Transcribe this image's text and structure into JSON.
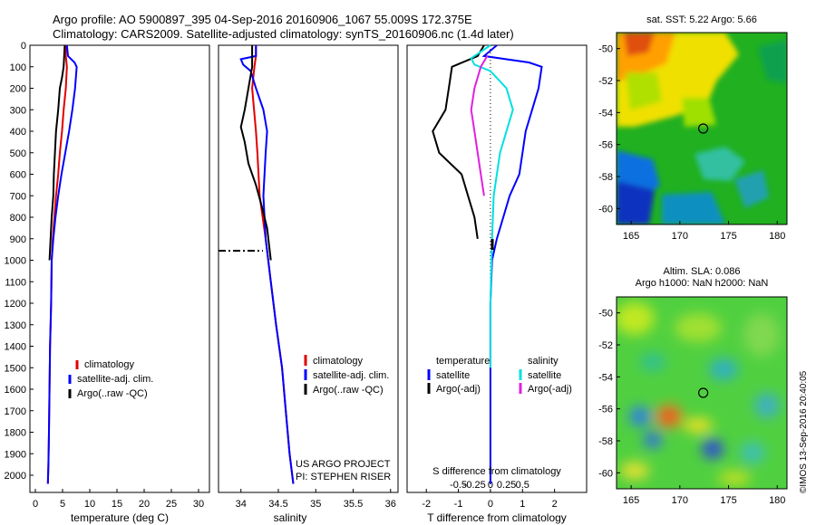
{
  "header": {
    "line1": "Argo profile: AO 5900897_395 04-Sep-2016 20160906_1067 55.009S 172.375E",
    "line2": "Climatology: CARS2009. Satellite-adjusted climatology: synTS_20160906.nc (1.4d later)"
  },
  "colors": {
    "climatology": "#e00000",
    "satellite": "#0000ff",
    "argo": "#000000",
    "sat_salinity": "#00e0e0",
    "argo_adj_salinity": "#e020e0"
  },
  "credits": {
    "project": "US ARGO PROJECT",
    "pi": "PI: STEPHEN RISER",
    "stamp": "©IMOS 13-Sep-2016 20:40:05"
  },
  "chart_data": [
    {
      "id": "temperature",
      "type": "line",
      "xlabel": "temperature (deg C)",
      "xlim": [
        -1,
        32
      ],
      "ylim": [
        2080,
        0
      ],
      "xticks": [
        0,
        5,
        10,
        15,
        20,
        25,
        30
      ],
      "yticks": [
        0,
        100,
        200,
        300,
        400,
        500,
        600,
        700,
        800,
        900,
        1000,
        1100,
        1200,
        1300,
        1400,
        1500,
        1600,
        1700,
        1800,
        1900,
        2000
      ],
      "legend": [
        "climatology",
        "satellite-adj. clim.",
        "Argo(..raw -QC)"
      ],
      "series": [
        {
          "key": "climatology",
          "points": [
            [
              5.6,
              0
            ],
            [
              5.6,
              50
            ],
            [
              5.8,
              100
            ],
            [
              5.6,
              200
            ],
            [
              5.2,
              300
            ],
            [
              4.9,
              400
            ],
            [
              4.5,
              500
            ],
            [
              4.2,
              600
            ],
            [
              3.8,
              700
            ],
            [
              3.5,
              800
            ],
            [
              3.2,
              900
            ],
            [
              3.0,
              1000
            ],
            [
              2.9,
              1200
            ],
            [
              2.7,
              1400
            ],
            [
              2.6,
              1600
            ],
            [
              2.5,
              1800
            ],
            [
              2.4,
              1950
            ],
            [
              2.3,
              2040
            ]
          ]
        },
        {
          "key": "satellite",
          "points": [
            [
              5.8,
              0
            ],
            [
              6.0,
              50
            ],
            [
              7.2,
              80
            ],
            [
              7.6,
              100
            ],
            [
              7.3,
              200
            ],
            [
              6.8,
              300
            ],
            [
              6.2,
              400
            ],
            [
              5.5,
              500
            ],
            [
              4.8,
              600
            ],
            [
              4.2,
              700
            ],
            [
              3.7,
              800
            ],
            [
              3.3,
              900
            ],
            [
              3.0,
              1000
            ],
            [
              2.9,
              1200
            ],
            [
              2.7,
              1400
            ],
            [
              2.6,
              1600
            ],
            [
              2.5,
              1800
            ],
            [
              2.4,
              1950
            ],
            [
              2.3,
              2040
            ]
          ]
        },
        {
          "key": "argo",
          "points": [
            [
              5.4,
              0
            ],
            [
              5.3,
              50
            ],
            [
              5.2,
              100
            ],
            [
              4.9,
              150
            ],
            [
              4.5,
              200
            ],
            [
              4.2,
              300
            ],
            [
              3.8,
              400
            ],
            [
              3.6,
              500
            ],
            [
              3.4,
              600
            ],
            [
              3.3,
              700
            ],
            [
              3.0,
              800
            ],
            [
              2.8,
              900
            ],
            [
              2.6,
              1000
            ]
          ]
        }
      ]
    },
    {
      "id": "salinity",
      "type": "line",
      "xlabel": "salinity",
      "xlim": [
        33.7,
        36.1
      ],
      "ylim": [
        2080,
        0
      ],
      "xticks": [
        34,
        34.5,
        35,
        35.5,
        36
      ],
      "legend": [
        "climatology",
        "satellite-adj. clim.",
        "Argo(..raw -QC)"
      ],
      "series": [
        {
          "key": "climatology",
          "points": [
            [
              34.2,
              0
            ],
            [
              34.2,
              50
            ],
            [
              34.18,
              100
            ],
            [
              34.15,
              200
            ],
            [
              34.2,
              400
            ],
            [
              34.22,
              500
            ],
            [
              34.25,
              700
            ],
            [
              34.33,
              900
            ],
            [
              34.4,
              1100
            ],
            [
              34.47,
              1300
            ],
            [
              34.55,
              1500
            ],
            [
              34.6,
              1700
            ],
            [
              34.65,
              1900
            ],
            [
              34.7,
              2040
            ]
          ]
        },
        {
          "key": "satellite",
          "points": [
            [
              34.2,
              0
            ],
            [
              34.2,
              50
            ],
            [
              34.0,
              65
            ],
            [
              34.03,
              90
            ],
            [
              34.13,
              120
            ],
            [
              34.2,
              200
            ],
            [
              34.3,
              300
            ],
            [
              34.35,
              400
            ],
            [
              34.33,
              500
            ],
            [
              34.3,
              700
            ],
            [
              34.33,
              900
            ],
            [
              34.4,
              1100
            ],
            [
              34.47,
              1300
            ],
            [
              34.55,
              1500
            ],
            [
              34.6,
              1700
            ],
            [
              34.65,
              1900
            ],
            [
              34.7,
              2040
            ]
          ]
        },
        {
          "key": "argo",
          "points": [
            [
              34.15,
              0
            ],
            [
              34.15,
              100
            ],
            [
              34.1,
              200
            ],
            [
              34.05,
              300
            ],
            [
              34.0,
              380
            ],
            [
              34.05,
              450
            ],
            [
              34.1,
              550
            ],
            [
              34.2,
              650
            ],
            [
              34.28,
              750
            ],
            [
              34.35,
              850
            ],
            [
              34.4,
              1000
            ]
          ]
        }
      ]
    },
    {
      "id": "difference",
      "type": "line",
      "xlabel": "T difference from climatology",
      "xlabel_top": "S difference from climatology",
      "xlim": [
        -2.6,
        3.0
      ],
      "ylim": [
        2080,
        0
      ],
      "xticks": [
        -2,
        -1,
        0,
        1,
        2
      ],
      "xticks_top": [
        "-0.5",
        "-0.25",
        "0",
        "0.25",
        "0.5"
      ],
      "legend_temperature": [
        "temperature",
        "satellite",
        "Argo(-adj)"
      ],
      "legend_salinity": [
        "salinity",
        "satellite",
        "Argo(-adj)"
      ],
      "series": [
        {
          "key": "temperature_satellite",
          "points": [
            [
              0.2,
              0
            ],
            [
              -0.2,
              50
            ],
            [
              1.2,
              80
            ],
            [
              1.6,
              100
            ],
            [
              1.5,
              200
            ],
            [
              1.3,
              300
            ],
            [
              1.1,
              400
            ],
            [
              1.0,
              500
            ],
            [
              0.9,
              600
            ],
            [
              0.6,
              700
            ],
            [
              0.4,
              800
            ],
            [
              0.2,
              900
            ],
            [
              0.05,
              1000
            ],
            [
              0.0,
              1200
            ],
            [
              0.0,
              2040
            ]
          ]
        },
        {
          "key": "temperature_argo",
          "points": [
            [
              -0.2,
              0
            ],
            [
              -0.4,
              50
            ],
            [
              -1.2,
              100
            ],
            [
              -1.3,
              200
            ],
            [
              -1.4,
              300
            ],
            [
              -1.8,
              400
            ],
            [
              -1.6,
              500
            ],
            [
              -0.9,
              600
            ],
            [
              -0.7,
              700
            ],
            [
              -0.5,
              800
            ],
            [
              -0.4,
              900
            ]
          ]
        },
        {
          "key": "salinity_satellite",
          "points": [
            [
              0.0,
              0
            ],
            [
              -0.6,
              60
            ],
            [
              -0.5,
              90
            ],
            [
              0.0,
              120
            ],
            [
              0.5,
              200
            ],
            [
              0.7,
              300
            ],
            [
              0.5,
              400
            ],
            [
              0.3,
              500
            ],
            [
              0.2,
              600
            ],
            [
              0.1,
              700
            ],
            [
              0.05,
              900
            ],
            [
              0.0,
              1200
            ],
            [
              0.0,
              1500
            ]
          ]
        },
        {
          "key": "salinity_argo",
          "points": [
            [
              -0.1,
              50
            ],
            [
              -0.3,
              100
            ],
            [
              -0.5,
              200
            ],
            [
              -0.6,
              300
            ],
            [
              -0.5,
              400
            ],
            [
              -0.4,
              500
            ],
            [
              -0.3,
              600
            ],
            [
              -0.2,
              700
            ]
          ]
        }
      ]
    },
    {
      "id": "sst_map",
      "type": "heatmap",
      "title": "sat. SST: 5.22 Argo: 5.66",
      "xlim": [
        163.5,
        181
      ],
      "ylim": [
        -61,
        -49
      ],
      "xticks": [
        165,
        170,
        175,
        180
      ],
      "yticks": [
        -50,
        -52,
        -54,
        -56,
        -58,
        -60
      ],
      "marker": [
        172.4,
        -55.0
      ]
    },
    {
      "id": "sla_map",
      "type": "heatmap",
      "title": "Altim. SLA: 0.086",
      "subtitle": "Argo h1000: NaN h2000: NaN",
      "xlim": [
        163.5,
        181
      ],
      "ylim": [
        -61,
        -49
      ],
      "xticks": [
        165,
        170,
        175,
        180
      ],
      "yticks": [
        -50,
        -52,
        -54,
        -56,
        -58,
        -60
      ],
      "marker": [
        172.4,
        -55.0
      ]
    }
  ]
}
